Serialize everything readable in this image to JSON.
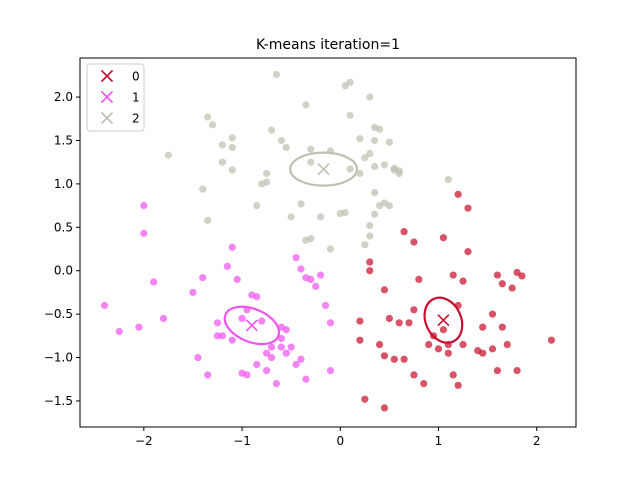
{
  "chart_data": {
    "type": "scatter",
    "title": "K-means iteration=1",
    "xlabel": "",
    "ylabel": "",
    "xlim": [
      -2.65,
      2.4
    ],
    "ylim": [
      -1.8,
      2.45
    ],
    "x_ticks": [
      -2,
      -1,
      0,
      1,
      2
    ],
    "y_ticks": [
      -1.5,
      -1.0,
      -0.5,
      0.0,
      0.5,
      1.0,
      1.5,
      2.0
    ],
    "x_tick_labels": [
      "−2",
      "−1",
      "0",
      "1",
      "2"
    ],
    "y_tick_labels": [
      "−1.5",
      "−1.0",
      "−0.5",
      "0.0",
      "0.5",
      "1.0",
      "1.5",
      "2.0"
    ],
    "grid": false,
    "legend_position": "upper-left",
    "series": [
      {
        "name": "0",
        "color": "#c8102e",
        "centroid": {
          "x": 1.05,
          "y": -0.57
        },
        "ellipse": {
          "rx": 0.18,
          "ry": 0.27,
          "angle_deg": 25
        },
        "x": [
          0.95,
          1.05,
          1.1,
          1.2,
          1.25,
          1.3,
          1.55,
          1.6,
          1.65,
          1.8,
          1.85,
          1.75,
          0.65,
          0.75,
          0.45,
          0.3,
          0.3,
          0.2,
          0.2,
          0.4,
          0.45,
          0.5,
          0.6,
          0.65,
          0.55,
          0.75,
          0.85,
          0.9,
          1.0,
          1.1,
          1.15,
          1.2,
          1.25,
          1.4,
          1.45,
          1.55,
          1.65,
          1.7,
          1.8,
          2.15,
          1.6,
          1.45,
          1.3,
          1.2,
          1.15,
          1.05,
          0.8,
          0.75,
          0.7,
          0.25,
          0.45
        ],
        "y": [
          -0.75,
          -0.68,
          -0.85,
          -0.4,
          -0.12,
          0.22,
          -0.5,
          -0.05,
          -0.15,
          -0.02,
          -0.06,
          -0.2,
          0.45,
          0.33,
          -0.22,
          0.1,
          0.0,
          -0.58,
          -0.8,
          -0.85,
          -0.98,
          -0.55,
          -0.6,
          -1.02,
          -1.02,
          -1.2,
          -1.3,
          -0.85,
          -0.9,
          -0.95,
          -1.2,
          -1.32,
          -0.85,
          -0.92,
          -0.95,
          -0.9,
          -0.65,
          -0.85,
          -1.15,
          -0.8,
          -1.15,
          -0.65,
          0.72,
          0.88,
          -0.05,
          0.38,
          -0.1,
          -0.45,
          -0.6,
          -1.48,
          -1.58
        ]
      },
      {
        "name": "1",
        "color": "#ee55ee",
        "centroid": {
          "x": -0.9,
          "y": -0.63
        },
        "ellipse": {
          "rx": 0.29,
          "ry": 0.19,
          "angle_deg": -22
        },
        "x": [
          -2.4,
          -2.25,
          -2.05,
          -2.0,
          -2.0,
          -1.9,
          -1.8,
          -1.5,
          -1.45,
          -1.35,
          -1.25,
          -1.15,
          -1.1,
          -1.05,
          -1.0,
          -0.95,
          -0.9,
          -0.85,
          -0.8,
          -0.75,
          -0.7,
          -0.65,
          -0.6,
          -0.55,
          -0.45,
          -0.4,
          -0.35,
          -0.3,
          -0.25,
          -0.2,
          -0.15,
          -0.1,
          -0.1,
          -1.4,
          -1.2,
          -1.0,
          -0.95,
          -0.85,
          -0.75,
          -0.7,
          -0.6,
          -0.5,
          -0.45,
          -0.35,
          -0.4,
          -0.55,
          -0.6,
          -1.1,
          -1.25
        ],
        "y": [
          -0.4,
          -0.7,
          -0.65,
          0.75,
          0.43,
          -0.13,
          -0.55,
          -0.25,
          -1.0,
          -1.2,
          -0.75,
          0.05,
          0.27,
          -0.1,
          -0.55,
          -0.45,
          -0.28,
          -0.3,
          -0.58,
          -0.95,
          -0.88,
          -1.3,
          -0.65,
          -0.68,
          0.15,
          0.02,
          -0.08,
          -0.1,
          -0.18,
          -0.05,
          -0.4,
          -0.6,
          -1.15,
          -0.08,
          -0.75,
          -1.18,
          -1.2,
          -1.08,
          -1.15,
          -1.0,
          -0.88,
          -0.88,
          -1.08,
          -1.25,
          -1.02,
          -0.95,
          -0.78,
          -0.8,
          -0.6
        ]
      },
      {
        "name": "2",
        "color": "#bfbfb2",
        "centroid": {
          "x": -0.17,
          "y": 1.17
        },
        "ellipse": {
          "rx": 0.34,
          "ry": 0.19,
          "angle_deg": 0
        },
        "x": [
          -0.65,
          -0.35,
          -0.3,
          -0.1,
          0.05,
          0.1,
          0.1,
          0.2,
          0.3,
          0.35,
          0.35,
          0.4,
          0.3,
          0.25,
          0.35,
          0.45,
          0.5,
          0.55,
          0.6,
          -1.35,
          -1.3,
          -1.2,
          -1.1,
          -1.1,
          -1.2,
          -1.1,
          -1.4,
          -1.75,
          -1.35,
          -0.75,
          -0.75,
          -0.6,
          -0.55,
          -0.5,
          -0.4,
          -0.35,
          -0.3,
          -0.3,
          -0.2,
          -0.1,
          0.0,
          0.05,
          0.1,
          0.2,
          0.3,
          0.35,
          0.4,
          0.45,
          0.5,
          0.55,
          0.6,
          1.1,
          -0.85,
          -0.7,
          -0.8,
          0.35,
          0.3,
          0.25
        ],
        "y": [
          2.26,
          1.91,
          1.4,
          1.38,
          2.13,
          2.17,
          1.79,
          1.52,
          2.0,
          1.65,
          1.5,
          1.63,
          1.35,
          1.3,
          1.2,
          1.22,
          1.48,
          1.18,
          1.12,
          1.77,
          1.68,
          1.45,
          1.53,
          1.42,
          1.25,
          1.16,
          0.94,
          1.33,
          0.58,
          1.12,
          1.02,
          1.5,
          1.42,
          0.62,
          0.77,
          0.35,
          0.37,
          1.25,
          0.62,
          0.25,
          0.66,
          0.67,
          1.17,
          1.12,
          0.4,
          0.9,
          0.75,
          0.78,
          0.75,
          1.16,
          1.15,
          1.05,
          0.75,
          1.62,
          1.0,
          0.65,
          0.52,
          0.3
        ]
      }
    ]
  }
}
